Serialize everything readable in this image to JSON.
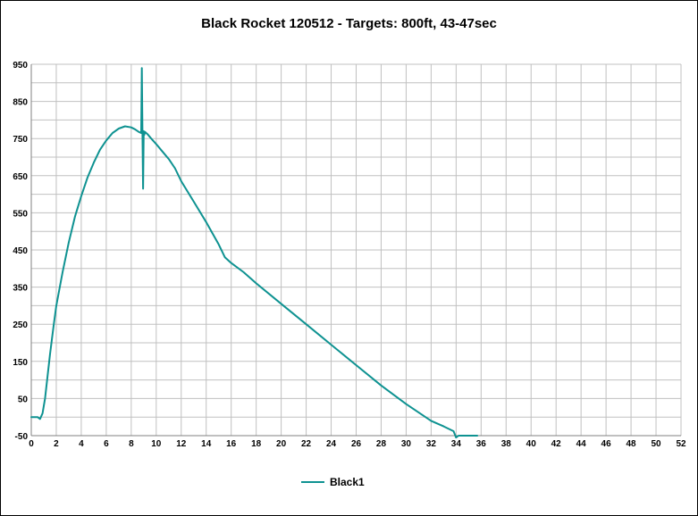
{
  "chart_data": {
    "type": "line",
    "title": "Black Rocket  120512 - Targets: 800ft, 43-47sec",
    "xlabel": "",
    "ylabel": "",
    "xlim": [
      0,
      52
    ],
    "ylim": [
      -50,
      950
    ],
    "x_ticks": [
      "0",
      "2",
      "4",
      "6",
      "8",
      "10",
      "12",
      "14",
      "16",
      "18",
      "20",
      "22",
      "24",
      "26",
      "28",
      "30",
      "32",
      "34",
      "36",
      "38",
      "40",
      "42",
      "44",
      "46",
      "48",
      "50",
      "52"
    ],
    "y_ticks": [
      "950",
      "850",
      "750",
      "650",
      "550",
      "450",
      "350",
      "250",
      "150",
      "50",
      "-50"
    ],
    "grid": true,
    "legend_position": "bottom-center",
    "series": [
      {
        "name": "Black1",
        "color": "#0E9291",
        "x": [
          0,
          0.5,
          0.7,
          0.9,
          1.1,
          1.3,
          1.5,
          1.8,
          2.0,
          2.5,
          3.0,
          3.5,
          4.0,
          4.5,
          5.0,
          5.5,
          6.0,
          6.5,
          7.0,
          7.5,
          8.0,
          8.3,
          8.6,
          8.8,
          8.85,
          8.9,
          8.95,
          9.0,
          9.05,
          9.1,
          9.3,
          9.6,
          10.0,
          10.5,
          11.0,
          11.5,
          12.0,
          13.0,
          14.0,
          15.0,
          15.5,
          16.0,
          17.0,
          18.0,
          20.0,
          22.0,
          24.0,
          26.0,
          28.0,
          30.0,
          32.0,
          33.0,
          33.8,
          34.0,
          34.2,
          35.0,
          35.7
        ],
        "y": [
          0,
          0,
          -5,
          10,
          50,
          110,
          170,
          250,
          300,
          390,
          470,
          540,
          595,
          645,
          685,
          720,
          745,
          765,
          777,
          783,
          780,
          775,
          768,
          765,
          940,
          765,
          615,
          770,
          760,
          768,
          762,
          750,
          735,
          715,
          695,
          670,
          635,
          580,
          525,
          465,
          430,
          415,
          390,
          360,
          305,
          250,
          195,
          140,
          85,
          35,
          -10,
          -25,
          -38,
          -55,
          -50,
          -50,
          -50
        ]
      }
    ]
  },
  "legend": {
    "label": "Black1"
  }
}
